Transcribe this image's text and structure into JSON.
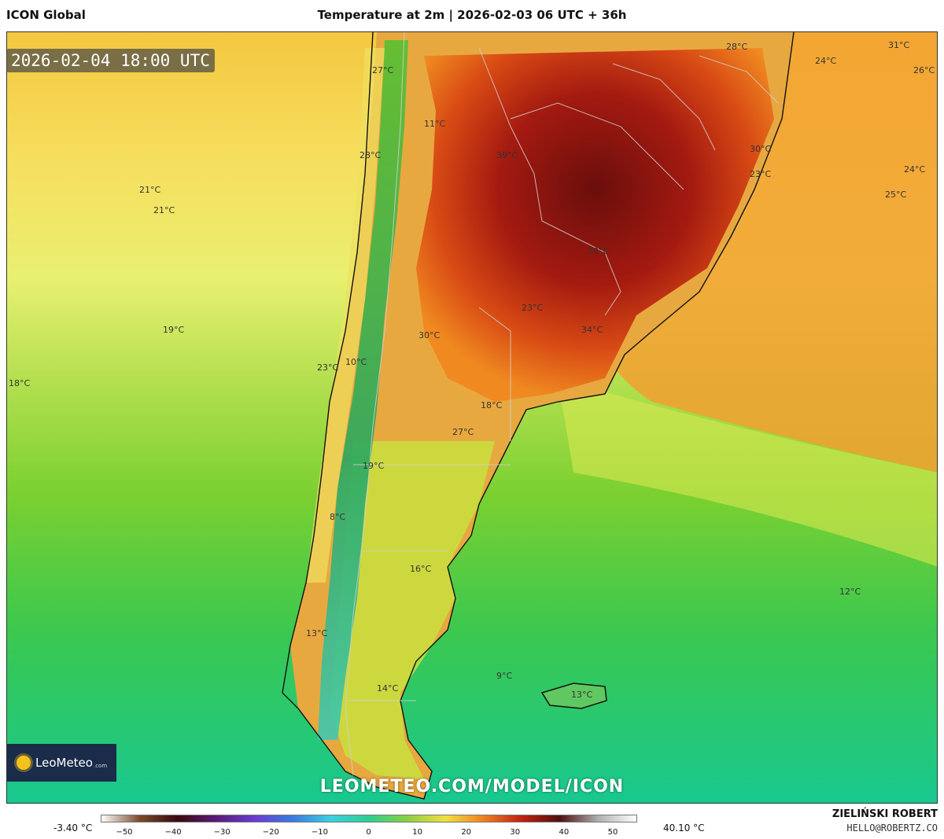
{
  "header": {
    "model": "ICON Global",
    "title": "Temperature at 2m | 2026-02-03 06 UTC + 36h"
  },
  "valid_time": "2026-02-04 18:00 UTC",
  "logo_text": "LeoMeteo",
  "logo_suffix": ".com",
  "watermark": "LEOMETEO.COM/MODEL/ICON",
  "footer": {
    "author": "ZIELIŃSKI ROBERT",
    "email": "HELLO@ROBERTZ.CO"
  },
  "colorbar": {
    "min_label": "-3.40 °C",
    "max_label": "40.10 °C",
    "ticks": [
      "−50",
      "−40",
      "−30",
      "−20",
      "−10",
      "0",
      "10",
      "20",
      "30",
      "40",
      "50"
    ],
    "colors": [
      "#ffffff",
      "#7a4a2a",
      "#3a0a10",
      "#5a1a7a",
      "#6a3ad0",
      "#3a7ae0",
      "#3ad0e0",
      "#2ad090",
      "#8ad040",
      "#f0e040",
      "#f08020",
      "#c02010",
      "#501010",
      "#b0b0b0",
      "#ffffff"
    ]
  },
  "labels": [
    {
      "text": "27°C"
    },
    {
      "text": "11°C"
    },
    {
      "text": "39°C"
    },
    {
      "text": "28°C"
    },
    {
      "text": "21°C"
    },
    {
      "text": "21°C"
    },
    {
      "text": "39°C"
    },
    {
      "text": "23°C"
    },
    {
      "text": "19°C"
    },
    {
      "text": "30°C"
    },
    {
      "text": "34°C"
    },
    {
      "text": "23°C"
    },
    {
      "text": "10°C"
    },
    {
      "text": "18°C"
    },
    {
      "text": "18°C"
    },
    {
      "text": "27°C"
    },
    {
      "text": "19°C"
    },
    {
      "text": "8°C"
    },
    {
      "text": "16°C"
    },
    {
      "text": "12°C"
    },
    {
      "text": "13°C"
    },
    {
      "text": "9°C"
    },
    {
      "text": "14°C"
    },
    {
      "text": "13°C"
    },
    {
      "text": "28°C"
    },
    {
      "text": "24°C"
    },
    {
      "text": "31°C"
    },
    {
      "text": "26°C"
    },
    {
      "text": "30°C"
    },
    {
      "text": "23°C"
    },
    {
      "text": "24°C"
    },
    {
      "text": "25°C"
    }
  ]
}
